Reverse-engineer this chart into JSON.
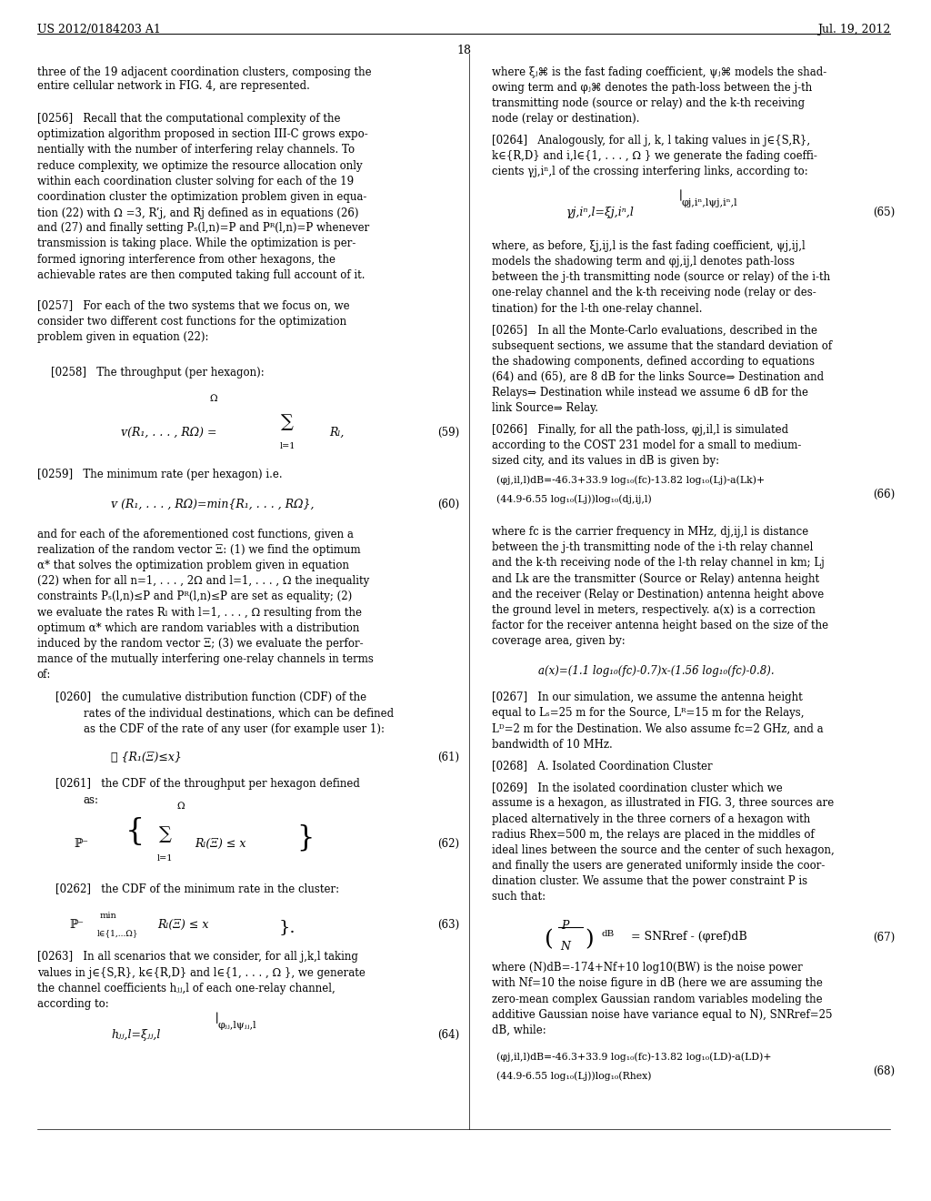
{
  "background_color": "#ffffff",
  "header_left": "US 2012/0184203 A1",
  "header_right": "Jul. 19, 2012",
  "page_number": "18",
  "figsize": [
    10.24,
    13.2
  ],
  "dpi": 100
}
